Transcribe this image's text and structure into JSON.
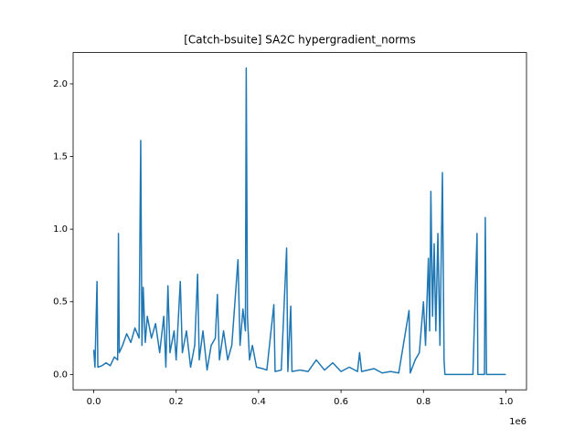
{
  "chart_data": {
    "type": "line",
    "title": "[Catch-bsuite] SA2C hypergradient_norms",
    "x_offset_text": "1e6",
    "x": [
      0,
      3000,
      8000,
      10000,
      20000,
      30000,
      40000,
      50000,
      58000,
      60000,
      62000,
      70000,
      80000,
      90000,
      100000,
      110000,
      114000,
      117000,
      120000,
      125000,
      130000,
      140000,
      150000,
      160000,
      170000,
      175000,
      180000,
      185000,
      195000,
      200000,
      210000,
      215000,
      225000,
      235000,
      245000,
      252000,
      256000,
      265000,
      275000,
      285000,
      295000,
      300000,
      305000,
      315000,
      325000,
      335000,
      350000,
      355000,
      362000,
      368000,
      370000,
      373000,
      378000,
      385000,
      395000,
      410000,
      420000,
      437000,
      440000,
      455000,
      468000,
      471000,
      478000,
      481000,
      500000,
      520000,
      540000,
      560000,
      580000,
      600000,
      620000,
      640000,
      645000,
      650000,
      680000,
      700000,
      720000,
      740000,
      765000,
      768000,
      780000,
      790000,
      800000,
      805000,
      812000,
      815000,
      818000,
      822000,
      826000,
      830000,
      835000,
      840000,
      846000,
      850000,
      852000,
      920000,
      930000,
      932000,
      948000,
      950000,
      953000,
      1000000
    ],
    "series": [
      {
        "name": "hypergradient_norms",
        "color": "#1f77b4",
        "values": [
          0.17,
          0.05,
          0.64,
          0.05,
          0.06,
          0.08,
          0.06,
          0.12,
          0.1,
          0.97,
          0.15,
          0.2,
          0.28,
          0.22,
          0.32,
          0.25,
          1.61,
          0.2,
          0.6,
          0.22,
          0.4,
          0.25,
          0.35,
          0.15,
          0.4,
          0.05,
          0.61,
          0.15,
          0.3,
          0.1,
          0.64,
          0.15,
          0.3,
          0.05,
          0.2,
          0.69,
          0.1,
          0.3,
          0.03,
          0.2,
          0.25,
          0.55,
          0.1,
          0.3,
          0.1,
          0.2,
          0.79,
          0.2,
          0.45,
          0.3,
          2.11,
          0.4,
          0.1,
          0.2,
          0.05,
          0.04,
          0.03,
          0.48,
          0.02,
          0.03,
          0.87,
          0.02,
          0.47,
          0.02,
          0.03,
          0.02,
          0.1,
          0.03,
          0.08,
          0.02,
          0.05,
          0.02,
          0.15,
          0.02,
          0.04,
          0.01,
          0.02,
          0.01,
          0.44,
          0.01,
          0.1,
          0.15,
          0.5,
          0.2,
          0.8,
          0.3,
          1.26,
          0.4,
          0.9,
          0.3,
          0.97,
          0.2,
          1.39,
          0.1,
          0.0,
          0.0,
          0.97,
          0.0,
          0.0,
          1.08,
          0.0,
          0.0
        ]
      }
    ],
    "xlim": [
      -50000,
      1050000
    ],
    "ylim": [
      -0.106,
      2.216
    ],
    "xticks": [
      {
        "value": 0,
        "label": "0.0"
      },
      {
        "value": 200000,
        "label": "0.2"
      },
      {
        "value": 400000,
        "label": "0.4"
      },
      {
        "value": 600000,
        "label": "0.6"
      },
      {
        "value": 800000,
        "label": "0.8"
      },
      {
        "value": 1000000,
        "label": "1.0"
      }
    ],
    "yticks": [
      {
        "value": 0,
        "label": "0.0"
      },
      0.5,
      {
        "value": 1,
        "label": "1.0"
      },
      1.5,
      {
        "value": 2,
        "label": "2.0"
      }
    ],
    "grid": false
  }
}
